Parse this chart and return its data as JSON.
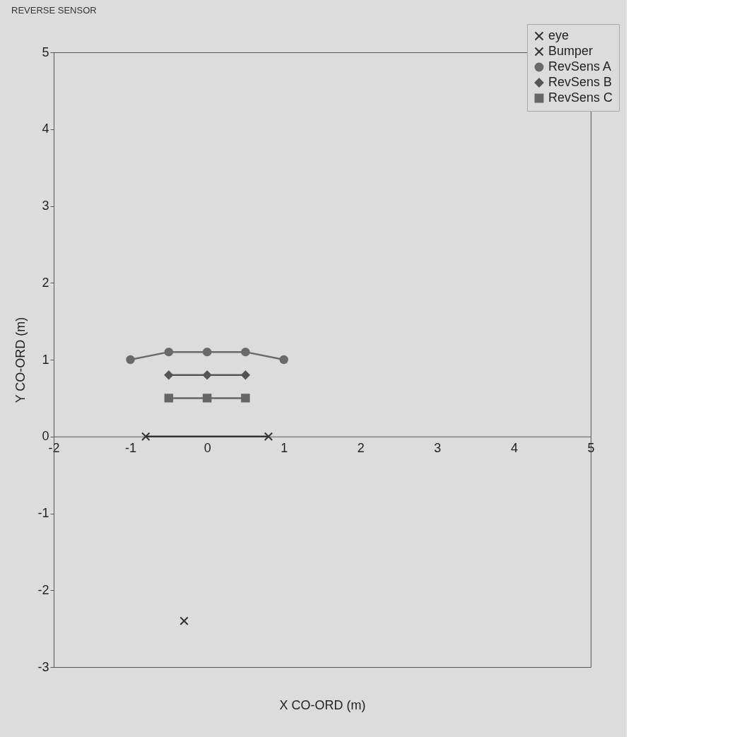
{
  "chart_data": {
    "type": "line",
    "title": "REVERSE SENSOR",
    "xlabel": "X CO-ORD (m)",
    "ylabel": "Y CO-ORD (m)",
    "xlim": [
      -2,
      5
    ],
    "ylim": [
      -3,
      5
    ],
    "xticks": [
      -2,
      -1,
      0,
      1,
      2,
      3,
      4,
      5
    ],
    "yticks": [
      -3,
      -2,
      -1,
      0,
      1,
      2,
      3,
      4,
      5
    ],
    "grid": false,
    "legend": "top right",
    "series": [
      {
        "name": "eye",
        "type": "scatter",
        "marker": "cross",
        "color": "#333333",
        "x": [
          -0.3
        ],
        "values": [
          -2.4
        ]
      },
      {
        "name": "Bumper",
        "marker": "cross",
        "color": "#333333",
        "x": [
          -0.8,
          0.8
        ],
        "values": [
          0,
          0
        ]
      },
      {
        "name": "RevSens A",
        "marker": "circle",
        "color": "#6a6a6a",
        "x": [
          -1,
          -0.5,
          0,
          0.5,
          1
        ],
        "values": [
          1,
          1.1,
          1.1,
          1.1,
          1
        ]
      },
      {
        "name": "RevSens B",
        "marker": "diamond",
        "color": "#555555",
        "x": [
          -0.5,
          0,
          0.5
        ],
        "values": [
          0.8,
          0.8,
          0.8
        ]
      },
      {
        "name": "RevSens C",
        "marker": "square",
        "color": "#666666",
        "x": [
          -0.5,
          0,
          0.5
        ],
        "values": [
          0.5,
          0.5,
          0.5
        ]
      }
    ]
  }
}
